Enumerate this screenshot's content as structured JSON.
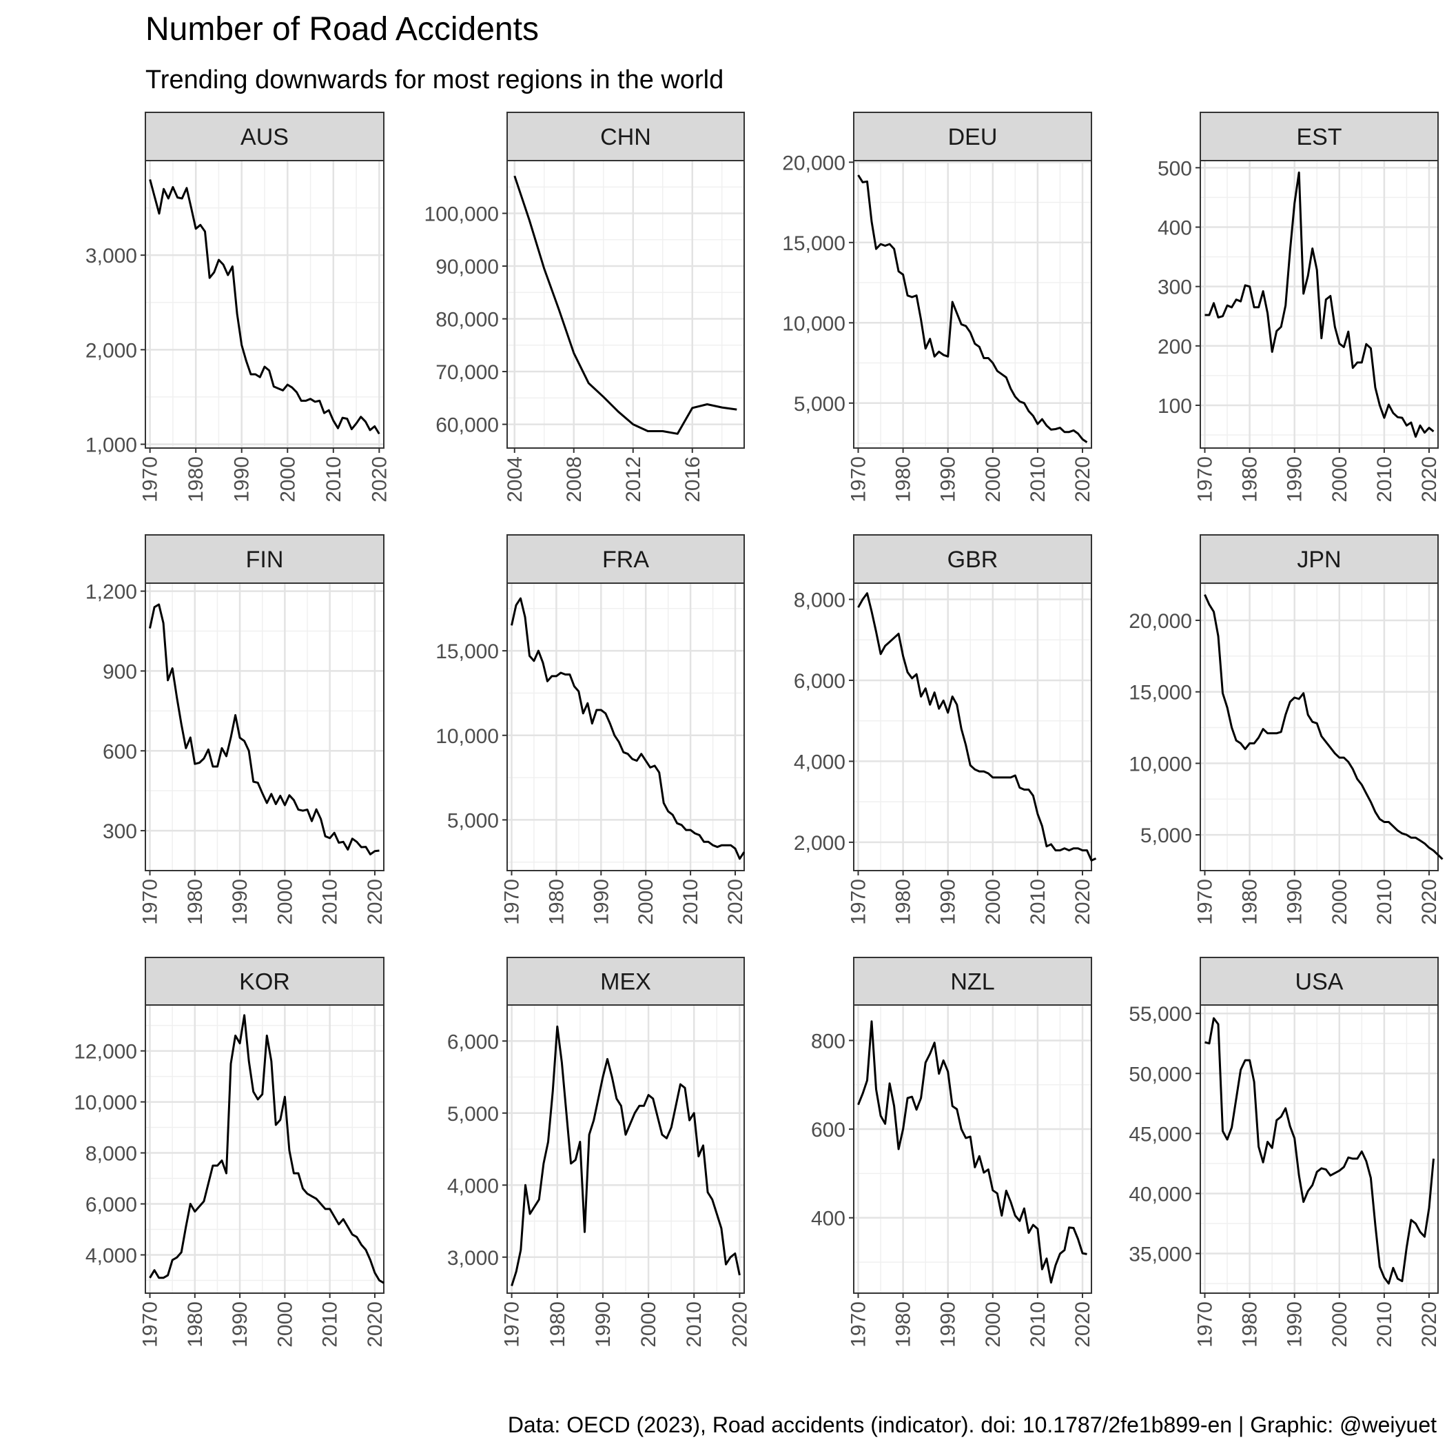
{
  "title": "Number of Road Accidents",
  "subtitle": "Trending downwards for most regions in the world",
  "caption": "Data: OECD (2023), Road accidents (indicator). doi: 10.1787/2fe1b899-en | Graphic: @weiyuet",
  "chart_data": [
    {
      "type": "line",
      "panel": "AUS",
      "x_start": 1970,
      "xlim": [
        1969,
        2021
      ],
      "x_ticks": [
        1970,
        1980,
        1990,
        2000,
        2010,
        2020
      ],
      "ylim": [
        960,
        4000
      ],
      "y_ticks": [
        1000,
        2000,
        3000
      ],
      "y_tick_labels": [
        "1,000",
        "2,000",
        "3,000"
      ],
      "values": [
        3800,
        3620,
        3440,
        3700,
        3600,
        3720,
        3610,
        3600,
        3710,
        3500,
        3280,
        3320,
        3250,
        2760,
        2820,
        2950,
        2900,
        2790,
        2880,
        2380,
        2050,
        1880,
        1740,
        1740,
        1710,
        1820,
        1780,
        1610,
        1590,
        1570,
        1630,
        1600,
        1550,
        1460,
        1460,
        1480,
        1450,
        1460,
        1330,
        1360,
        1250,
        1170,
        1280,
        1270,
        1160,
        1220,
        1290,
        1240,
        1150,
        1190,
        1110
      ]
    },
    {
      "type": "line",
      "panel": "CHN",
      "x_start": 2004,
      "xlim": [
        2003.5,
        2019.5
      ],
      "x_ticks": [
        2004,
        2008,
        2012,
        2016
      ],
      "ylim": [
        55500,
        110000
      ],
      "y_ticks": [
        60000,
        70000,
        80000,
        90000,
        100000
      ],
      "y_tick_labels": [
        "60,000",
        "70,000",
        "80,000",
        "90,000",
        "100,000"
      ],
      "values": [
        107100,
        98700,
        89500,
        81700,
        73500,
        67800,
        65200,
        62400,
        60000,
        58700,
        58700,
        58200,
        63100,
        63800,
        63200,
        62800
      ]
    },
    {
      "type": "line",
      "panel": "DEU",
      "x_start": 1970,
      "xlim": [
        1969,
        2022
      ],
      "x_ticks": [
        1970,
        1980,
        1990,
        2000,
        2010,
        2020
      ],
      "ylim": [
        2200,
        20100
      ],
      "y_ticks": [
        5000,
        10000,
        15000,
        20000
      ],
      "y_tick_labels": [
        "5,000",
        "10,000",
        "15,000",
        "20,000"
      ],
      "values": [
        19200,
        18750,
        18800,
        16300,
        14600,
        14900,
        14800,
        14900,
        14600,
        13200,
        13000,
        11700,
        11600,
        11700,
        10200,
        8400,
        9000,
        7900,
        8200,
        8000,
        7900,
        11300,
        10600,
        9900,
        9800,
        9400,
        8700,
        8500,
        7800,
        7800,
        7500,
        7000,
        6800,
        6600,
        5900,
        5400,
        5100,
        5000,
        4500,
        4200,
        3700,
        4000,
        3600,
        3350,
        3380,
        3460,
        3200,
        3200,
        3300,
        3100,
        2750,
        2560
      ]
    },
    {
      "type": "line",
      "panel": "EST",
      "x_start": 1970,
      "xlim": [
        1969,
        2022
      ],
      "x_ticks": [
        1970,
        1980,
        1990,
        2000,
        2010,
        2020
      ],
      "ylim": [
        28,
        512
      ],
      "y_ticks": [
        100,
        200,
        300,
        400,
        500
      ],
      "y_tick_labels": [
        "100",
        "200",
        "300",
        "400",
        "500"
      ],
      "values": [
        252,
        252,
        272,
        248,
        250,
        268,
        265,
        278,
        275,
        302,
        300,
        265,
        265,
        292,
        255,
        190,
        225,
        232,
        268,
        360,
        440,
        492,
        288,
        318,
        364,
        328,
        213,
        278,
        284,
        232,
        204,
        198,
        224,
        163,
        172,
        172,
        203,
        196,
        130,
        100,
        79,
        101,
        87,
        80,
        79,
        66,
        71,
        47,
        66,
        54,
        62,
        56
      ]
    },
    {
      "type": "line",
      "panel": "FIN",
      "x_start": 1970,
      "xlim": [
        1969,
        2022
      ],
      "x_ticks": [
        1970,
        1980,
        1990,
        2000,
        2010,
        2020
      ],
      "ylim": [
        150,
        1230
      ],
      "y_ticks": [
        300,
        600,
        900,
        1200
      ],
      "y_tick_labels": [
        "300",
        "600",
        "900",
        "1,200"
      ],
      "values": [
        1060,
        1140,
        1150,
        1080,
        865,
        910,
        800,
        700,
        610,
        650,
        551,
        555,
        571,
        605,
        541,
        541,
        610,
        580,
        650,
        734,
        649,
        637,
        600,
        484,
        480,
        441,
        404,
        438,
        400,
        431,
        396,
        433,
        415,
        379,
        375,
        379,
        336,
        380,
        344,
        279,
        272,
        292,
        255,
        258,
        229,
        270,
        258,
        238,
        239,
        211,
        223,
        225
      ]
    },
    {
      "type": "line",
      "panel": "FRA",
      "x_start": 1970,
      "xlim": [
        1969,
        2022
      ],
      "x_ticks": [
        1970,
        1980,
        1990,
        2000,
        2010,
        2020
      ],
      "ylim": [
        2000,
        19000
      ],
      "y_ticks": [
        5000,
        10000,
        15000
      ],
      "y_tick_labels": [
        "5,000",
        "10,000",
        "15,000"
      ],
      "values": [
        16500,
        17700,
        18100,
        17000,
        14700,
        14400,
        15000,
        14300,
        13200,
        13500,
        13500,
        13700,
        13600,
        13600,
        12900,
        12600,
        11300,
        11900,
        10700,
        11500,
        11500,
        11300,
        10700,
        10000,
        9600,
        9000,
        8900,
        8600,
        8500,
        8900,
        8500,
        8100,
        8200,
        7800,
        6000,
        5500,
        5300,
        4800,
        4700,
        4400,
        4400,
        4200,
        4100,
        3700,
        3700,
        3500,
        3400,
        3500,
        3500,
        3500,
        3300,
        2700,
        3100
      ]
    },
    {
      "type": "line",
      "panel": "GBR",
      "x_start": 1970,
      "xlim": [
        1969,
        2022
      ],
      "x_ticks": [
        1970,
        1980,
        1990,
        2000,
        2010,
        2020
      ],
      "ylim": [
        1300,
        8400
      ],
      "y_ticks": [
        2000,
        4000,
        6000,
        8000
      ],
      "y_tick_labels": [
        "2,000",
        "4,000",
        "6,000",
        "8,000"
      ],
      "values": [
        7800,
        8000,
        8150,
        7700,
        7200,
        6650,
        6850,
        6950,
        7050,
        7150,
        6600,
        6200,
        6050,
        6150,
        5600,
        5800,
        5400,
        5700,
        5300,
        5500,
        5200,
        5600,
        5400,
        4800,
        4400,
        3900,
        3800,
        3750,
        3750,
        3700,
        3600,
        3600,
        3600,
        3600,
        3600,
        3650,
        3350,
        3300,
        3300,
        3150,
        2700,
        2400,
        1900,
        1950,
        1800,
        1800,
        1850,
        1800,
        1850,
        1850,
        1800,
        1800,
        1550,
        1600
      ]
    },
    {
      "type": "line",
      "panel": "JPN",
      "x_start": 1970,
      "xlim": [
        1969,
        2022
      ],
      "x_ticks": [
        1970,
        1980,
        1990,
        2000,
        2010,
        2020
      ],
      "ylim": [
        2500,
        22600
      ],
      "y_ticks": [
        5000,
        10000,
        15000,
        20000
      ],
      "y_tick_labels": [
        "5,000",
        "10,000",
        "15,000",
        "20,000"
      ],
      "values": [
        21800,
        21100,
        20600,
        18900,
        14900,
        13900,
        12500,
        11600,
        11400,
        11000,
        11400,
        11400,
        11800,
        12400,
        12100,
        12100,
        12100,
        12200,
        13400,
        14300,
        14600,
        14500,
        14900,
        13400,
        12900,
        12800,
        11900,
        11500,
        11100,
        10700,
        10400,
        10400,
        10100,
        9600,
        8900,
        8500,
        7900,
        7300,
        6600,
        6100,
        5900,
        5900,
        5600,
        5300,
        5100,
        5000,
        4800,
        4800,
        4600,
        4400,
        4100,
        3900,
        3600,
        3300
      ]
    },
    {
      "type": "line",
      "panel": "KOR",
      "x_start": 1970,
      "xlim": [
        1969,
        2022
      ],
      "x_ticks": [
        1970,
        1980,
        1990,
        2000,
        2010,
        2020
      ],
      "ylim": [
        2500,
        13800
      ],
      "y_ticks": [
        4000,
        6000,
        8000,
        10000,
        12000
      ],
      "y_tick_labels": [
        "4,000",
        "6,000",
        "8,000",
        "10,000",
        "12,000"
      ],
      "values": [
        3100,
        3400,
        3100,
        3100,
        3200,
        3800,
        3900,
        4100,
        5100,
        6000,
        5700,
        5900,
        6100,
        6800,
        7500,
        7500,
        7700,
        7200,
        11500,
        12600,
        12300,
        13400,
        11600,
        10400,
        10100,
        10300,
        12600,
        11600,
        9100,
        9300,
        10200,
        8100,
        7200,
        7200,
        6600,
        6400,
        6300,
        6200,
        6000,
        5800,
        5800,
        5500,
        5200,
        5400,
        5100,
        4800,
        4700,
        4400,
        4200,
        3800,
        3300,
        3000,
        2900
      ]
    },
    {
      "type": "line",
      "panel": "MEX",
      "x_start": 1970,
      "xlim": [
        1969,
        2021
      ],
      "x_ticks": [
        1970,
        1980,
        1990,
        2000,
        2010,
        2020
      ],
      "ylim": [
        2500,
        6500
      ],
      "y_ticks": [
        3000,
        4000,
        5000,
        6000
      ],
      "y_tick_labels": [
        "3,000",
        "4,000",
        "5,000",
        "6,000"
      ],
      "values": [
        2600,
        2800,
        3100,
        4000,
        3600,
        3700,
        3800,
        4300,
        4600,
        5300,
        6200,
        5700,
        5000,
        4300,
        4350,
        4600,
        3350,
        4700,
        4900,
        5200,
        5500,
        5750,
        5500,
        5200,
        5100,
        4700,
        4850,
        5000,
        5100,
        5100,
        5250,
        5200,
        4950,
        4700,
        4650,
        4800,
        5100,
        5400,
        5350,
        4900,
        5000,
        4400,
        4550,
        3900,
        3800,
        3600,
        3400,
        2900,
        3000,
        3050,
        2750
      ]
    },
    {
      "type": "line",
      "panel": "NZL",
      "x_start": 1970,
      "xlim": [
        1969,
        2022
      ],
      "x_ticks": [
        1970,
        1980,
        1990,
        2000,
        2010,
        2020
      ],
      "ylim": [
        230,
        880
      ],
      "y_ticks": [
        400,
        600,
        800
      ],
      "y_tick_labels": [
        "400",
        "600",
        "800"
      ],
      "values": [
        655,
        680,
        710,
        843,
        690,
        630,
        612,
        703,
        652,
        555,
        600,
        670,
        673,
        644,
        670,
        750,
        770,
        795,
        725,
        755,
        730,
        652,
        645,
        600,
        580,
        583,
        514,
        539,
        502,
        509,
        462,
        455,
        405,
        461,
        436,
        405,
        393,
        421,
        366,
        384,
        375,
        284,
        308,
        254,
        293,
        319,
        327,
        378,
        377,
        352,
        320,
        318
      ]
    },
    {
      "type": "line",
      "panel": "USA",
      "x_start": 1970,
      "xlim": [
        1969,
        2022
      ],
      "x_ticks": [
        1970,
        1980,
        1990,
        2000,
        2010,
        2020
      ],
      "ylim": [
        31700,
        55700
      ],
      "y_ticks": [
        35000,
        40000,
        45000,
        50000,
        55000
      ],
      "y_tick_labels": [
        "35,000",
        "40,000",
        "45,000",
        "50,000",
        "55,000"
      ],
      "values": [
        52600,
        52500,
        54600,
        54100,
        45200,
        44500,
        45500,
        47900,
        50300,
        51100,
        51100,
        49300,
        43900,
        42600,
        44300,
        43800,
        46100,
        46400,
        47100,
        45600,
        44600,
        41500,
        39300,
        40200,
        40700,
        41800,
        42100,
        42000,
        41500,
        41700,
        41900,
        42200,
        43000,
        42900,
        42900,
        43500,
        42700,
        41300,
        37400,
        33900,
        33000,
        32500,
        33800,
        32900,
        32700,
        35500,
        37800,
        37500,
        36800,
        36400,
        38800,
        42900
      ]
    }
  ]
}
